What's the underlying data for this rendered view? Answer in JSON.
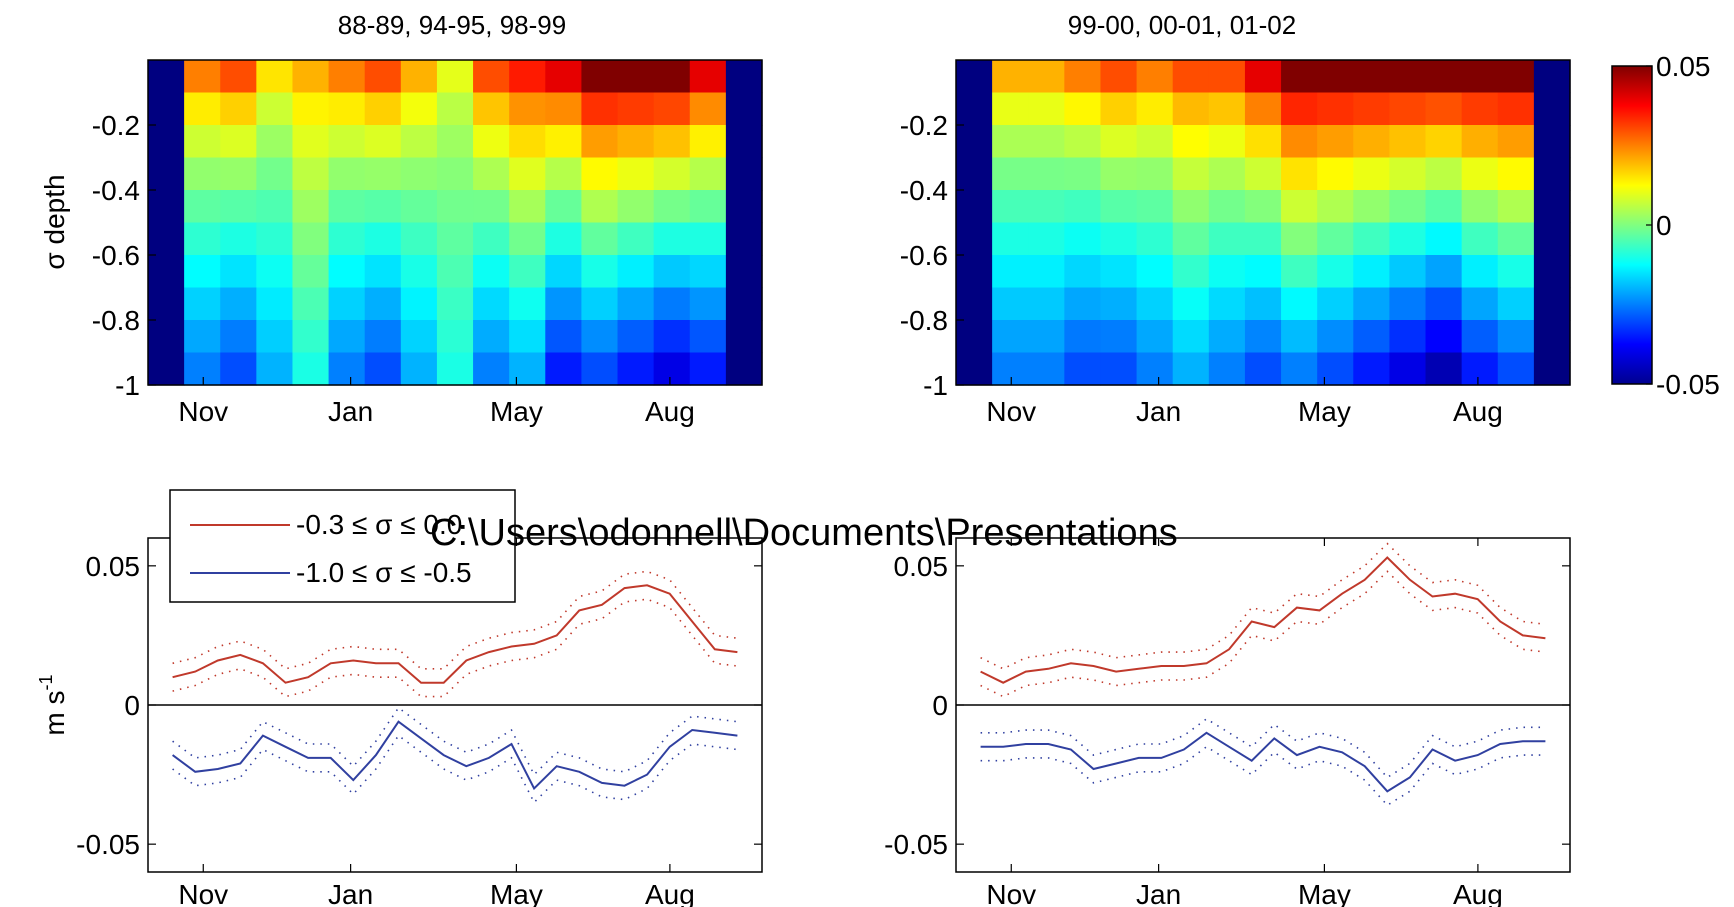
{
  "chart_data": [
    {
      "type": "heatmap",
      "title": "88-89, 94-95, 98-99",
      "ylabel": "σ depth",
      "xlabel": "",
      "x_tick_labels": [
        "Nov",
        "Jan",
        "May",
        "Aug"
      ],
      "y_tick_labels": [
        "-0.2",
        "-0.4",
        "-0.6",
        "-0.8",
        "-1"
      ],
      "y_ticks": [
        -0.2,
        -0.4,
        -0.6,
        -0.8,
        -1.0
      ],
      "ylim": [
        -1.0,
        0.0
      ],
      "value_range": [
        -0.05,
        0.05
      ],
      "x": [
        0.0,
        0.0625,
        0.125,
        0.1875,
        0.25,
        0.3125,
        0.375,
        0.4375,
        0.5,
        0.5625,
        0.625,
        0.6875,
        0.75,
        0.8125,
        0.875,
        0.9375,
        1.0
      ],
      "x_valid_range": [
        0.06,
        0.94
      ],
      "sigma_levels": [
        -0.05,
        -0.15,
        -0.25,
        -0.35,
        -0.45,
        -0.55,
        -0.65,
        -0.75,
        -0.85,
        -0.95
      ],
      "surface_values": [
        0.02,
        0.025,
        0.03,
        0.015,
        0.02,
        0.025,
        0.03,
        0.02,
        0.01,
        0.03,
        0.035,
        0.04,
        0.05,
        0.05,
        0.05,
        0.04,
        0.03
      ],
      "bottom_values": [
        -0.02,
        -0.025,
        -0.03,
        -0.02,
        -0.01,
        -0.025,
        -0.03,
        -0.02,
        -0.01,
        -0.025,
        -0.02,
        -0.035,
        -0.03,
        -0.035,
        -0.04,
        -0.035,
        -0.02
      ]
    },
    {
      "type": "heatmap",
      "title": "99-00, 00-01, 01-02",
      "ylabel": "",
      "xlabel": "",
      "x_tick_labels": [
        "Nov",
        "Jan",
        "May",
        "Aug"
      ],
      "y_tick_labels": [
        "-0.2",
        "-0.4",
        "-0.6",
        "-0.8",
        "-1"
      ],
      "y_ticks": [
        -0.2,
        -0.4,
        -0.6,
        -0.8,
        -1.0
      ],
      "ylim": [
        -1.0,
        0.0
      ],
      "value_range": [
        -0.05,
        0.05
      ],
      "x": [
        0.0,
        0.0625,
        0.125,
        0.1875,
        0.25,
        0.3125,
        0.375,
        0.4375,
        0.5,
        0.5625,
        0.625,
        0.6875,
        0.75,
        0.8125,
        0.875,
        0.9375,
        1.0
      ],
      "x_valid_range": [
        0.06,
        0.94
      ],
      "sigma_levels": [
        -0.05,
        -0.15,
        -0.25,
        -0.35,
        -0.45,
        -0.55,
        -0.65,
        -0.75,
        -0.85,
        -0.95
      ],
      "surface_values": [
        0.015,
        0.02,
        0.02,
        0.025,
        0.03,
        0.025,
        0.03,
        0.03,
        0.04,
        0.05,
        0.05,
        0.05,
        0.05,
        0.05,
        0.05,
        0.05,
        0.04
      ],
      "bottom_values": [
        -0.02,
        -0.025,
        -0.025,
        -0.03,
        -0.03,
        -0.025,
        -0.02,
        -0.025,
        -0.03,
        -0.025,
        -0.03,
        -0.035,
        -0.04,
        -0.045,
        -0.035,
        -0.03,
        -0.025
      ]
    },
    {
      "type": "line",
      "title": "",
      "ylabel": "m s",
      "ylabel_superscript": "-1",
      "xlabel": "",
      "x_tick_labels": [
        "Nov",
        "Jan",
        "May",
        "Aug"
      ],
      "y_tick_labels": [
        "0.05",
        "0",
        "-0.05"
      ],
      "y_ticks": [
        0.05,
        0,
        -0.05
      ],
      "ylim": [
        -0.06,
        0.06
      ],
      "zero_line": true,
      "legend": {
        "placement": "top-left",
        "entries": [
          "-0.3 ≤ σ ≤ 0.0",
          "-1.0 ≤ σ ≤ -0.5"
        ]
      },
      "x": [
        0.0,
        0.04,
        0.08,
        0.12,
        0.16,
        0.2,
        0.24,
        0.28,
        0.32,
        0.36,
        0.4,
        0.44,
        0.48,
        0.52,
        0.56,
        0.6,
        0.64,
        0.68,
        0.72,
        0.76,
        0.8,
        0.84,
        0.88,
        0.92,
        0.96,
        1.0
      ],
      "series": [
        {
          "name": "-0.3 ≤ σ ≤ 0.0",
          "color": "#c0392b",
          "values": [
            0.01,
            0.012,
            0.016,
            0.018,
            0.015,
            0.008,
            0.01,
            0.015,
            0.016,
            0.015,
            0.015,
            0.008,
            0.008,
            0.016,
            0.019,
            0.021,
            0.022,
            0.025,
            0.034,
            0.036,
            0.042,
            0.043,
            0.04,
            0.03,
            0.02,
            0.019
          ],
          "band": 0.005
        },
        {
          "name": "-1.0 ≤ σ ≤ -0.5",
          "color": "#3040a0",
          "values": [
            -0.018,
            -0.024,
            -0.023,
            -0.021,
            -0.011,
            -0.015,
            -0.019,
            -0.019,
            -0.027,
            -0.018,
            -0.006,
            -0.012,
            -0.018,
            -0.022,
            -0.019,
            -0.014,
            -0.03,
            -0.022,
            -0.024,
            -0.028,
            -0.029,
            -0.025,
            -0.015,
            -0.009,
            -0.01,
            -0.011
          ],
          "band": 0.005
        }
      ]
    },
    {
      "type": "line",
      "title": "",
      "ylabel": "",
      "xlabel": "",
      "x_tick_labels": [
        "Nov",
        "Jan",
        "May",
        "Aug"
      ],
      "y_tick_labels": [
        "0.05",
        "0",
        "-0.05"
      ],
      "y_ticks": [
        0.05,
        0,
        -0.05
      ],
      "ylim": [
        -0.06,
        0.06
      ],
      "zero_line": true,
      "x": [
        0.0,
        0.04,
        0.08,
        0.12,
        0.16,
        0.2,
        0.24,
        0.28,
        0.32,
        0.36,
        0.4,
        0.44,
        0.48,
        0.52,
        0.56,
        0.6,
        0.64,
        0.68,
        0.72,
        0.76,
        0.8,
        0.84,
        0.88,
        0.92,
        0.96,
        1.0
      ],
      "series": [
        {
          "name": "-0.3 ≤ σ ≤ 0.0",
          "color": "#c0392b",
          "values": [
            0.012,
            0.008,
            0.012,
            0.013,
            0.015,
            0.014,
            0.012,
            0.013,
            0.014,
            0.014,
            0.015,
            0.02,
            0.03,
            0.028,
            0.035,
            0.034,
            0.04,
            0.045,
            0.053,
            0.045,
            0.039,
            0.04,
            0.038,
            0.03,
            0.025,
            0.024
          ],
          "band": 0.005
        },
        {
          "name": "-1.0 ≤ σ ≤ -0.5",
          "color": "#3040a0",
          "values": [
            -0.015,
            -0.015,
            -0.014,
            -0.014,
            -0.016,
            -0.023,
            -0.021,
            -0.019,
            -0.019,
            -0.016,
            -0.01,
            -0.015,
            -0.02,
            -0.012,
            -0.018,
            -0.015,
            -0.017,
            -0.022,
            -0.031,
            -0.026,
            -0.016,
            -0.02,
            -0.018,
            -0.014,
            -0.013,
            -0.013
          ],
          "band": 0.005
        }
      ]
    }
  ],
  "colorbar": {
    "tick_labels": [
      "0.05",
      "0",
      "-0.05"
    ],
    "ticks": [
      0.05,
      0,
      -0.05
    ],
    "colormap": "jet"
  },
  "overlay_text": "C:\\Users\\odonnell\\Documents\\Presentations"
}
